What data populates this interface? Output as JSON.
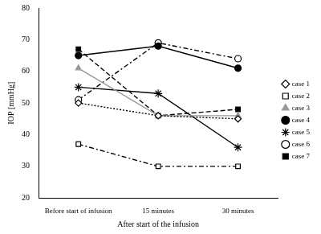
{
  "chart_data": {
    "type": "line",
    "x_label": "After start of the infusion",
    "y_label": "IOP [mmHg]",
    "categories": [
      "Before start of infusion",
      "15 minutes",
      "30 minutes"
    ],
    "ylim": [
      20,
      80
    ],
    "yticks": [
      20,
      30,
      40,
      50,
      60,
      70,
      80
    ],
    "grid": false,
    "legend": "right",
    "series": [
      {
        "name": "case 1",
        "color": "#000000",
        "marker": "open-diamond",
        "line_style": "dotted",
        "values": [
          50,
          46,
          45
        ]
      },
      {
        "name": "case 2",
        "color": "#000000",
        "marker": "open-square",
        "line_style": "dashdot",
        "values": [
          37,
          30,
          30
        ]
      },
      {
        "name": "case 3",
        "color": "#999999",
        "marker": "filled-triangle",
        "line_style": "solid",
        "values": [
          61,
          46,
          46
        ]
      },
      {
        "name": "case 4",
        "color": "#000000",
        "marker": "filled-circle",
        "line_style": "solid",
        "values": [
          65,
          68,
          61
        ]
      },
      {
        "name": "case 5",
        "color": "#000000",
        "marker": "star",
        "line_style": "solid",
        "values": [
          55,
          53,
          36
        ]
      },
      {
        "name": "case 6",
        "color": "#000000",
        "marker": "open-circle",
        "line_style": "dashdot",
        "values": [
          51,
          69,
          64
        ]
      },
      {
        "name": "case 7",
        "color": "#000000",
        "marker": "filled-square",
        "line_style": "dashed",
        "values": [
          67,
          46,
          48
        ]
      }
    ]
  }
}
